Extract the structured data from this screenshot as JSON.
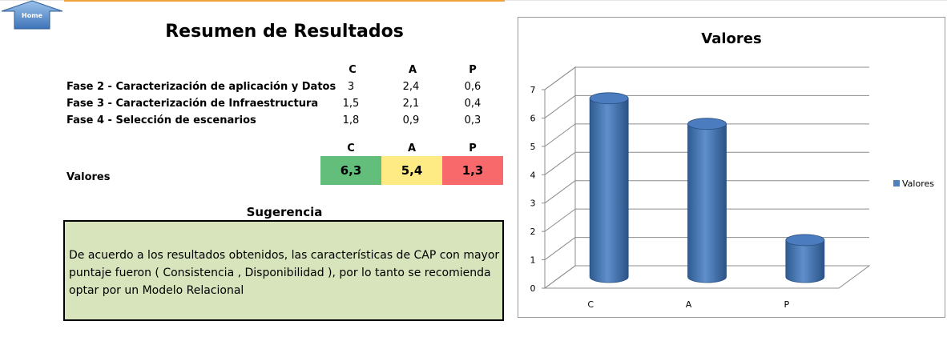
{
  "home_button": {
    "label": "Home"
  },
  "title": "Resumen de Resultados",
  "table": {
    "columns": [
      "C",
      "A",
      "P"
    ],
    "rows": [
      {
        "label": "Fase 2 - Caracterización de aplicación y Datos",
        "values": [
          "3",
          "2,4",
          "0,6"
        ]
      },
      {
        "label": "Fase 3 - Caracterización de Infraestructura",
        "values": [
          "1,5",
          "2,1",
          "0,4"
        ]
      },
      {
        "label": "Fase 4 - Selección de escenarios",
        "values": [
          "1,8",
          "0,9",
          "0,3"
        ]
      }
    ]
  },
  "valores": {
    "label": "Valores",
    "columns": [
      "C",
      "A",
      "P"
    ],
    "values": [
      "6,3",
      "5,4",
      "1,3"
    ],
    "colors": [
      "#63be7b",
      "#ffeb84",
      "#f8696b"
    ]
  },
  "sugerencia": {
    "title": "Sugerencia",
    "text": "De acuerdo a los resultados obtenidos, las características de CAP con mayor puntaje fueron  ( Consistencia , Disponibilidad ), por lo tanto se recomienda optar por un Modelo  Relacional",
    "background": "#d8e4bc"
  },
  "chart_data": {
    "type": "bar",
    "title": "Valores",
    "categories": [
      "C",
      "A",
      "P"
    ],
    "series": [
      {
        "name": "Valores",
        "values": [
          6.3,
          5.4,
          1.3
        ]
      }
    ],
    "ylim": [
      0,
      7
    ],
    "yticks": [
      "0",
      "1",
      "2",
      "3",
      "4",
      "5",
      "6",
      "7"
    ],
    "grid": true,
    "legend": "right",
    "bar_color": "#4f81bd"
  }
}
